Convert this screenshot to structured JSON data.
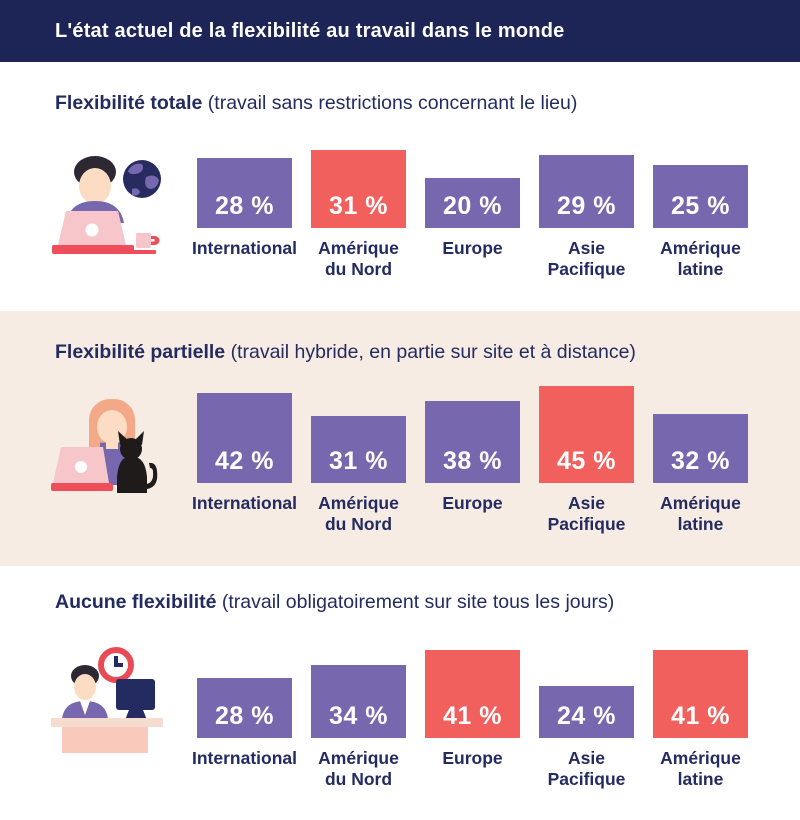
{
  "header": {
    "title": "L'état actuel de la flexibilité au travail dans le monde"
  },
  "colors": {
    "header_navy": "#1d2556",
    "text_navy": "#232b60",
    "bar_purple": "#7667ae",
    "bar_highlight_red": "#f2605e",
    "band_beige": "#f7ece3",
    "value_text": "#ffffff"
  },
  "illustrations": [
    {
      "name": "person-at-laptop-with-globe-and-mug"
    },
    {
      "name": "woman-at-laptop-with-cat"
    },
    {
      "name": "man-at-desk-with-monitor-and-clock"
    }
  ],
  "chart_data": [
    {
      "type": "bar",
      "title": "Flexibilité totale",
      "subtitle": "(travail sans restrictions concernant le lieu)",
      "categories": [
        "International",
        "Amérique du Nord",
        "Europe",
        "Asie Pacifique",
        "Amérique latine"
      ],
      "category_lines": [
        [
          "International"
        ],
        [
          "Amérique",
          "du Nord"
        ],
        [
          "Europe"
        ],
        [
          "Asie",
          "Pacifique"
        ],
        [
          "Amérique",
          "latine"
        ]
      ],
      "values": [
        28,
        31,
        20,
        29,
        25
      ],
      "value_labels": [
        "28 %",
        "31 %",
        "20 %",
        "29 %",
        "25 %"
      ],
      "highlight_indices": [
        1
      ],
      "unit": "%",
      "legend": "none",
      "grid": false
    },
    {
      "type": "bar",
      "title": "Flexibilité partielle",
      "subtitle": "(travail hybride, en partie sur site et à distance)",
      "categories": [
        "International",
        "Amérique du Nord",
        "Europe",
        "Asie Pacifique",
        "Amérique latine"
      ],
      "category_lines": [
        [
          "International"
        ],
        [
          "Amérique",
          "du Nord"
        ],
        [
          "Europe"
        ],
        [
          "Asie",
          "Pacifique"
        ],
        [
          "Amérique",
          "latine"
        ]
      ],
      "values": [
        42,
        31,
        38,
        45,
        32
      ],
      "value_labels": [
        "42 %",
        "31 %",
        "38 %",
        "45 %",
        "32 %"
      ],
      "highlight_indices": [
        3
      ],
      "unit": "%",
      "legend": "none",
      "grid": false
    },
    {
      "type": "bar",
      "title": "Aucune flexibilité",
      "subtitle": "(travail obligatoirement sur site tous les jours)",
      "categories": [
        "International",
        "Amérique du Nord",
        "Europe",
        "Asie Pacifique",
        "Amérique latine"
      ],
      "category_lines": [
        [
          "International"
        ],
        [
          "Amérique",
          "du Nord"
        ],
        [
          "Europe"
        ],
        [
          "Asie",
          "Pacifique"
        ],
        [
          "Amérique",
          "latine"
        ]
      ],
      "values": [
        28,
        34,
        41,
        24,
        41
      ],
      "value_labels": [
        "28 %",
        "34 %",
        "41 %",
        "24 %",
        "41 %"
      ],
      "highlight_indices": [
        2,
        4
      ],
      "unit": "%",
      "legend": "none",
      "grid": false
    }
  ]
}
